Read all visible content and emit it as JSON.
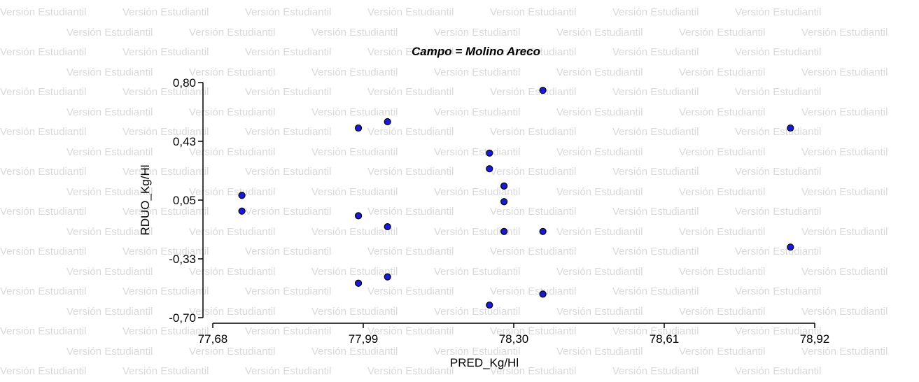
{
  "watermark_text": "Versión Estudiantil",
  "chart_data": {
    "type": "scatter",
    "title": "Campo = Molino Areco",
    "xlabel": "PRED_Kg/Hl",
    "ylabel": "RDUO_Kg/Hl",
    "xlim": [
      77.68,
      78.92
    ],
    "ylim": [
      -0.7,
      0.8
    ],
    "x_ticks": [
      "77,68",
      "77,99",
      "78,30",
      "78,61",
      "78,92"
    ],
    "y_ticks": [
      "-0,70",
      "-0,33",
      "0,05",
      "0,43",
      "0,80"
    ],
    "marker_color": "#1a1ad6",
    "marker_edge": "#000000",
    "points": [
      {
        "x": 77.74,
        "y": 0.08
      },
      {
        "x": 77.74,
        "y": -0.02
      },
      {
        "x": 77.98,
        "y": 0.51
      },
      {
        "x": 77.98,
        "y": -0.05
      },
      {
        "x": 77.98,
        "y": -0.48
      },
      {
        "x": 78.04,
        "y": 0.55
      },
      {
        "x": 78.04,
        "y": -0.12
      },
      {
        "x": 78.04,
        "y": -0.44
      },
      {
        "x": 78.25,
        "y": 0.35
      },
      {
        "x": 78.25,
        "y": 0.25
      },
      {
        "x": 78.25,
        "y": -0.62
      },
      {
        "x": 78.28,
        "y": 0.14
      },
      {
        "x": 78.28,
        "y": 0.04
      },
      {
        "x": 78.28,
        "y": -0.15
      },
      {
        "x": 78.36,
        "y": 0.75
      },
      {
        "x": 78.36,
        "y": -0.15
      },
      {
        "x": 78.36,
        "y": -0.55
      },
      {
        "x": 78.87,
        "y": 0.51
      },
      {
        "x": 78.87,
        "y": -0.25
      }
    ]
  }
}
